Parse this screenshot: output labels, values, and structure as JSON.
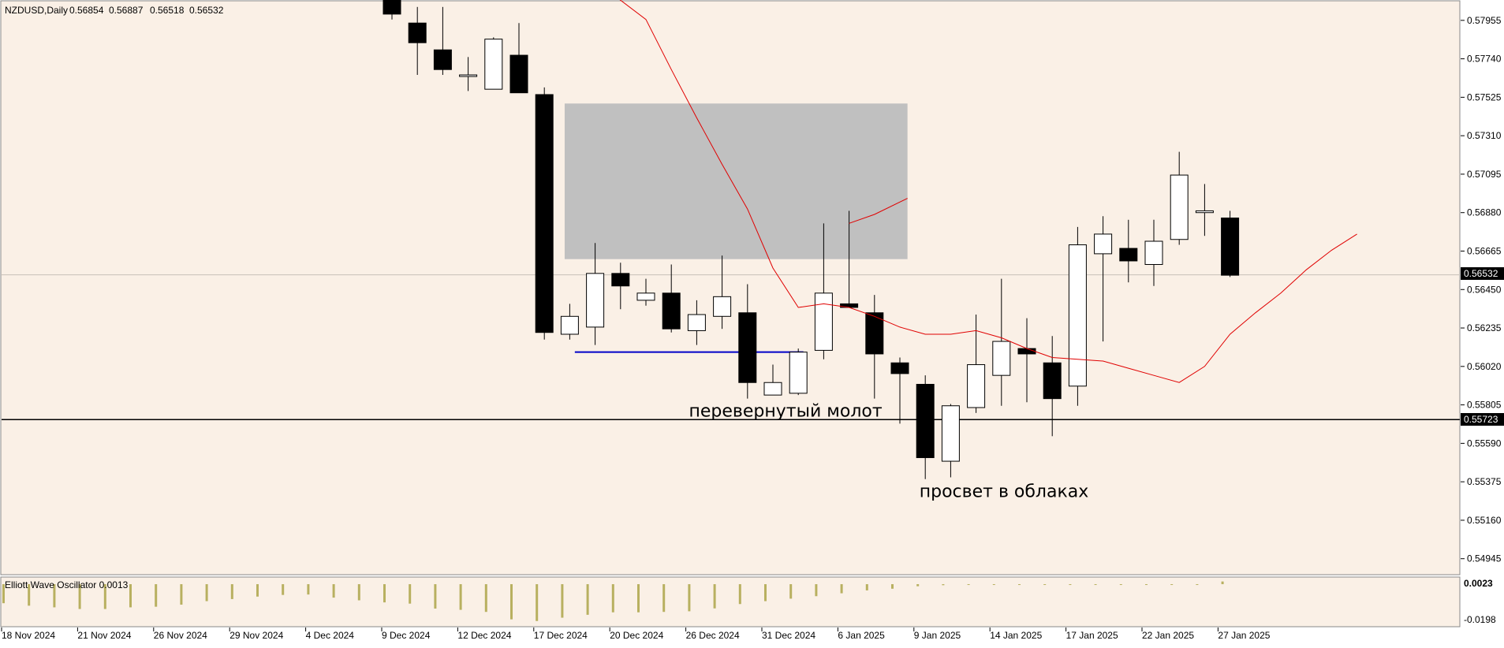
{
  "chart_data": {
    "type": "candlestick",
    "header": {
      "symbol": "NZDUSD,Daily",
      "ohlc": [
        "0.56854",
        "0.56887",
        "0.56518",
        "0.56532"
      ]
    },
    "price_scale": {
      "ticks": [
        "0.57955",
        "0.57740",
        "0.57525",
        "0.57310",
        "0.57095",
        "0.56880",
        "0.56665",
        "0.56450",
        "0.56235",
        "0.56020",
        "0.55805",
        "0.55590",
        "0.55375",
        "0.55160",
        "0.54945"
      ],
      "current_price_label": "0.56532",
      "level_label": "0.55723",
      "ylim": [
        0.5486,
        0.5806
      ]
    },
    "date_labels": [
      "18 Nov 2024",
      "21 Nov 2024",
      "26 Nov 2024",
      "29 Nov 2024",
      "4 Dec 2024",
      "9 Dec 2024",
      "12 Dec 2024",
      "17 Dec 2024",
      "20 Dec 2024",
      "26 Dec 2024",
      "31 Dec 2024",
      "6 Jan 2025",
      "9 Jan 2025",
      "14 Jan 2025",
      "17 Jan 2025",
      "22 Jan 2025",
      "27 Jan 2025"
    ],
    "candles": [
      {
        "o": 0.5808,
        "h": 0.581,
        "l": 0.5796,
        "c": 0.5799
      },
      {
        "o": 0.5794,
        "h": 0.5803,
        "l": 0.5765,
        "c": 0.5783
      },
      {
        "o": 0.5779,
        "h": 0.5803,
        "l": 0.5765,
        "c": 0.5768
      },
      {
        "o": 0.5765,
        "h": 0.5775,
        "l": 0.5756,
        "c": 0.5765
      },
      {
        "o": 0.5757,
        "h": 0.5786,
        "l": 0.5757,
        "c": 0.5785
      },
      {
        "o": 0.5776,
        "h": 0.5794,
        "l": 0.5755,
        "c": 0.5755
      },
      {
        "o": 0.5754,
        "h": 0.5758,
        "l": 0.5617,
        "c": 0.5621
      },
      {
        "o": 0.562,
        "h": 0.5637,
        "l": 0.5617,
        "c": 0.563
      },
      {
        "o": 0.5624,
        "h": 0.5671,
        "l": 0.5614,
        "c": 0.5654
      },
      {
        "o": 0.5654,
        "h": 0.566,
        "l": 0.5634,
        "c": 0.5647
      },
      {
        "o": 0.5639,
        "h": 0.5651,
        "l": 0.5636,
        "c": 0.5643
      },
      {
        "o": 0.5643,
        "h": 0.5659,
        "l": 0.5621,
        "c": 0.5623
      },
      {
        "o": 0.5622,
        "h": 0.5639,
        "l": 0.5614,
        "c": 0.5631
      },
      {
        "o": 0.563,
        "h": 0.5664,
        "l": 0.5623,
        "c": 0.5641
      },
      {
        "o": 0.5632,
        "h": 0.5648,
        "l": 0.5584,
        "c": 0.5593
      },
      {
        "o": 0.5586,
        "h": 0.5603,
        "l": 0.5586,
        "c": 0.5593
      },
      {
        "o": 0.5587,
        "h": 0.5612,
        "l": 0.5586,
        "c": 0.561
      },
      {
        "o": 0.5611,
        "h": 0.5682,
        "l": 0.5606,
        "c": 0.5643
      },
      {
        "o": 0.5637,
        "h": 0.5689,
        "l": 0.5635,
        "c": 0.5635
      },
      {
        "o": 0.5632,
        "h": 0.5642,
        "l": 0.5584,
        "c": 0.5609
      },
      {
        "o": 0.5604,
        "h": 0.5607,
        "l": 0.557,
        "c": 0.5598
      },
      {
        "o": 0.5592,
        "h": 0.5597,
        "l": 0.5539,
        "c": 0.5551
      },
      {
        "o": 0.5549,
        "h": 0.5581,
        "l": 0.554,
        "c": 0.558
      },
      {
        "o": 0.5579,
        "h": 0.5631,
        "l": 0.5576,
        "c": 0.5603
      },
      {
        "o": 0.5597,
        "h": 0.5651,
        "l": 0.558,
        "c": 0.5616
      },
      {
        "o": 0.5612,
        "h": 0.5629,
        "l": 0.5582,
        "c": 0.5609
      },
      {
        "o": 0.5604,
        "h": 0.5619,
        "l": 0.5563,
        "c": 0.5584
      },
      {
        "o": 0.5591,
        "h": 0.568,
        "l": 0.558,
        "c": 0.567
      },
      {
        "o": 0.5665,
        "h": 0.5686,
        "l": 0.5616,
        "c": 0.5676
      },
      {
        "o": 0.5668,
        "h": 0.5684,
        "l": 0.5649,
        "c": 0.5661
      },
      {
        "o": 0.5659,
        "h": 0.5684,
        "l": 0.5647,
        "c": 0.5672
      },
      {
        "o": 0.5673,
        "h": 0.5722,
        "l": 0.567,
        "c": 0.5709
      },
      {
        "o": 0.5688,
        "h": 0.5704,
        "l": 0.5675,
        "c": 0.5689
      },
      {
        "o": 0.5685,
        "h": 0.5689,
        "l": 0.5652,
        "c": 0.5653
      }
    ],
    "moving_average": {
      "color": "#e00000",
      "points": [
        {
          "i": 8.7,
          "v": 0.581
        },
        {
          "i": 10,
          "v": 0.5796
        },
        {
          "i": 11,
          "v": 0.5768
        },
        {
          "i": 12,
          "v": 0.5741
        },
        {
          "i": 13,
          "v": 0.5715
        },
        {
          "i": 14,
          "v": 0.569
        },
        {
          "i": 15,
          "v": 0.5657
        },
        {
          "i": 16,
          "v": 0.5635
        },
        {
          "i": 17,
          "v": 0.5637
        },
        {
          "i": 18,
          "v": 0.5635
        },
        {
          "i": 19,
          "v": 0.563
        },
        {
          "i": 20,
          "v": 0.5624
        },
        {
          "i": 21,
          "v": 0.562
        },
        {
          "i": 22,
          "v": 0.562
        },
        {
          "i": 23,
          "v": 0.5622
        },
        {
          "i": 24,
          "v": 0.5618
        },
        {
          "i": 25,
          "v": 0.5612
        },
        {
          "i": 26,
          "v": 0.5607
        },
        {
          "i": 27,
          "v": 0.5606
        },
        {
          "i": 28,
          "v": 0.5605
        },
        {
          "i": 29,
          "v": 0.5601
        },
        {
          "i": 30,
          "v": 0.5597
        },
        {
          "i": 31,
          "v": 0.5593
        },
        {
          "i": 32,
          "v": 0.5602
        },
        {
          "i": 33,
          "v": 0.562
        },
        {
          "i": 34,
          "v": 0.5632
        },
        {
          "i": 35,
          "v": 0.5643
        },
        {
          "i": 36,
          "v": 0.5656
        },
        {
          "i": 37,
          "v": 0.5667
        },
        {
          "i": 38,
          "v": 0.5676
        }
      ],
      "branch": [
        {
          "i": 18,
          "v": 0.5682
        },
        {
          "i": 19,
          "v": 0.5687
        },
        {
          "i": 20.3,
          "v": 0.5696
        }
      ]
    },
    "zone": {
      "i_start": 6.8,
      "i_end": 20.3,
      "top": 0.5749,
      "bottom": 0.5662,
      "color": "#c0c0c0"
    },
    "support_line": {
      "i_start": 7.2,
      "i_end": 16.2,
      "v": 0.561,
      "color": "#0000c8"
    },
    "horizontal_level": {
      "v": 0.55723,
      "color": "#000000"
    },
    "current_price_line": {
      "v": 0.56532,
      "color": "#c8c0b8"
    },
    "annotations": [
      {
        "text": "перевернутый молот",
        "i": 15.5,
        "v": 0.5574
      },
      {
        "text": "просвет в облаках",
        "i": 24.1,
        "v": 0.5529
      }
    ],
    "oscillator": {
      "title": "Elliott Wave Oscillator 0.0013",
      "top_label": "0.0023",
      "bottom_label": "-0.0198",
      "range": [
        -0.0198,
        0.0023
      ],
      "color": "#b8b060",
      "values": [
        -0.0092,
        -0.0104,
        -0.0112,
        -0.012,
        -0.012,
        -0.0112,
        -0.0109,
        -0.0099,
        -0.0082,
        -0.0072,
        -0.006,
        -0.0052,
        -0.005,
        -0.0065,
        -0.0078,
        -0.0088,
        -0.0094,
        -0.0118,
        -0.0124,
        -0.0134,
        -0.017,
        -0.0178,
        -0.0162,
        -0.0148,
        -0.0136,
        -0.0136,
        -0.0134,
        -0.0131,
        -0.0117,
        -0.0096,
        -0.0082,
        -0.007,
        -0.0058,
        -0.0044,
        -0.003,
        -0.0022,
        -0.001,
        -0.0005,
        -0.0003,
        -0.0002,
        -0.0001,
        0.0,
        0.0,
        0.0,
        0.0,
        0.0,
        0.0,
        0.0,
        0.0013
      ]
    }
  }
}
